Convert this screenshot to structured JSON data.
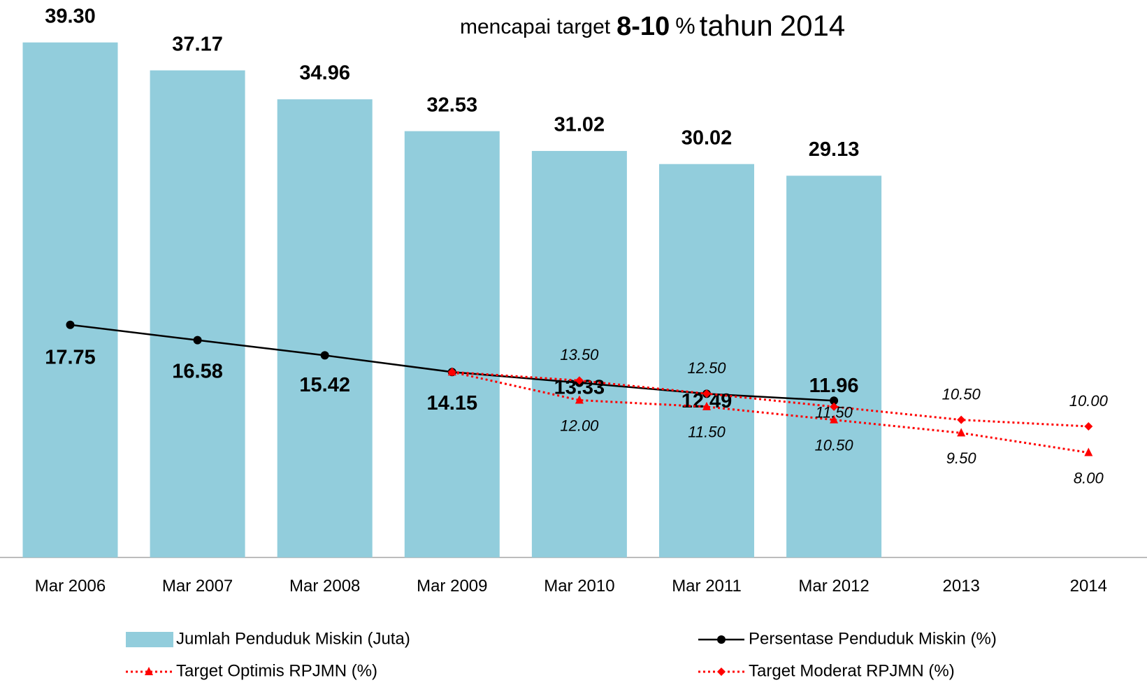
{
  "chart_data": {
    "type": "bar",
    "title_parts": [
      "mencapai target",
      "8-10",
      "%",
      "tahun",
      "2014"
    ],
    "categories": [
      "Mar 2006",
      "Mar 2007",
      "Mar 2008",
      "Mar 2009",
      "Mar 2010",
      "Mar 2011",
      "Mar 2012",
      "2013",
      "2014"
    ],
    "ylim": [
      0,
      40
    ],
    "y2lim": [
      0,
      40
    ],
    "series": [
      {
        "name": "Jumlah Penduduk Miskin (Juta)",
        "type": "bar",
        "color": "#92cddc",
        "values": [
          39.3,
          37.17,
          34.96,
          32.53,
          31.02,
          30.02,
          29.13,
          null,
          null
        ],
        "value_labels": [
          "39.30",
          "37.17",
          "34.96",
          "32.53",
          "31.02",
          "30.02",
          "29.13",
          null,
          null
        ]
      },
      {
        "name": "Persentase Penduduk Miskin (%)",
        "type": "line",
        "axis": "y2",
        "color": "#000000",
        "marker": "circle",
        "values": [
          17.75,
          16.58,
          15.42,
          14.15,
          13.33,
          12.49,
          11.96,
          null,
          null
        ],
        "value_labels": [
          "17.75",
          "16.58",
          "15.42",
          "14.15",
          "13.33",
          "12.49",
          "11.96",
          null,
          null
        ]
      },
      {
        "name": "Target Optimis RPJMN (%)",
        "type": "line",
        "axis": "y2",
        "color": "#ff0000",
        "marker": "triangle",
        "dashed": true,
        "values": [
          null,
          null,
          null,
          14.15,
          12.0,
          11.5,
          10.5,
          9.5,
          8.0
        ],
        "value_labels": [
          null,
          null,
          null,
          null,
          "12.00",
          "11.50",
          "10.50",
          "9.50",
          "8.00"
        ]
      },
      {
        "name": "Target Moderat RPJMN (%)",
        "type": "line",
        "axis": "y2",
        "color": "#ff0000",
        "marker": "diamond",
        "dashed": true,
        "values": [
          null,
          null,
          null,
          14.15,
          13.5,
          12.5,
          11.5,
          10.5,
          10.0
        ],
        "value_labels": [
          null,
          null,
          null,
          null,
          "13.50",
          "12.50",
          "11.50",
          "10.50",
          "10.00"
        ]
      }
    ]
  }
}
